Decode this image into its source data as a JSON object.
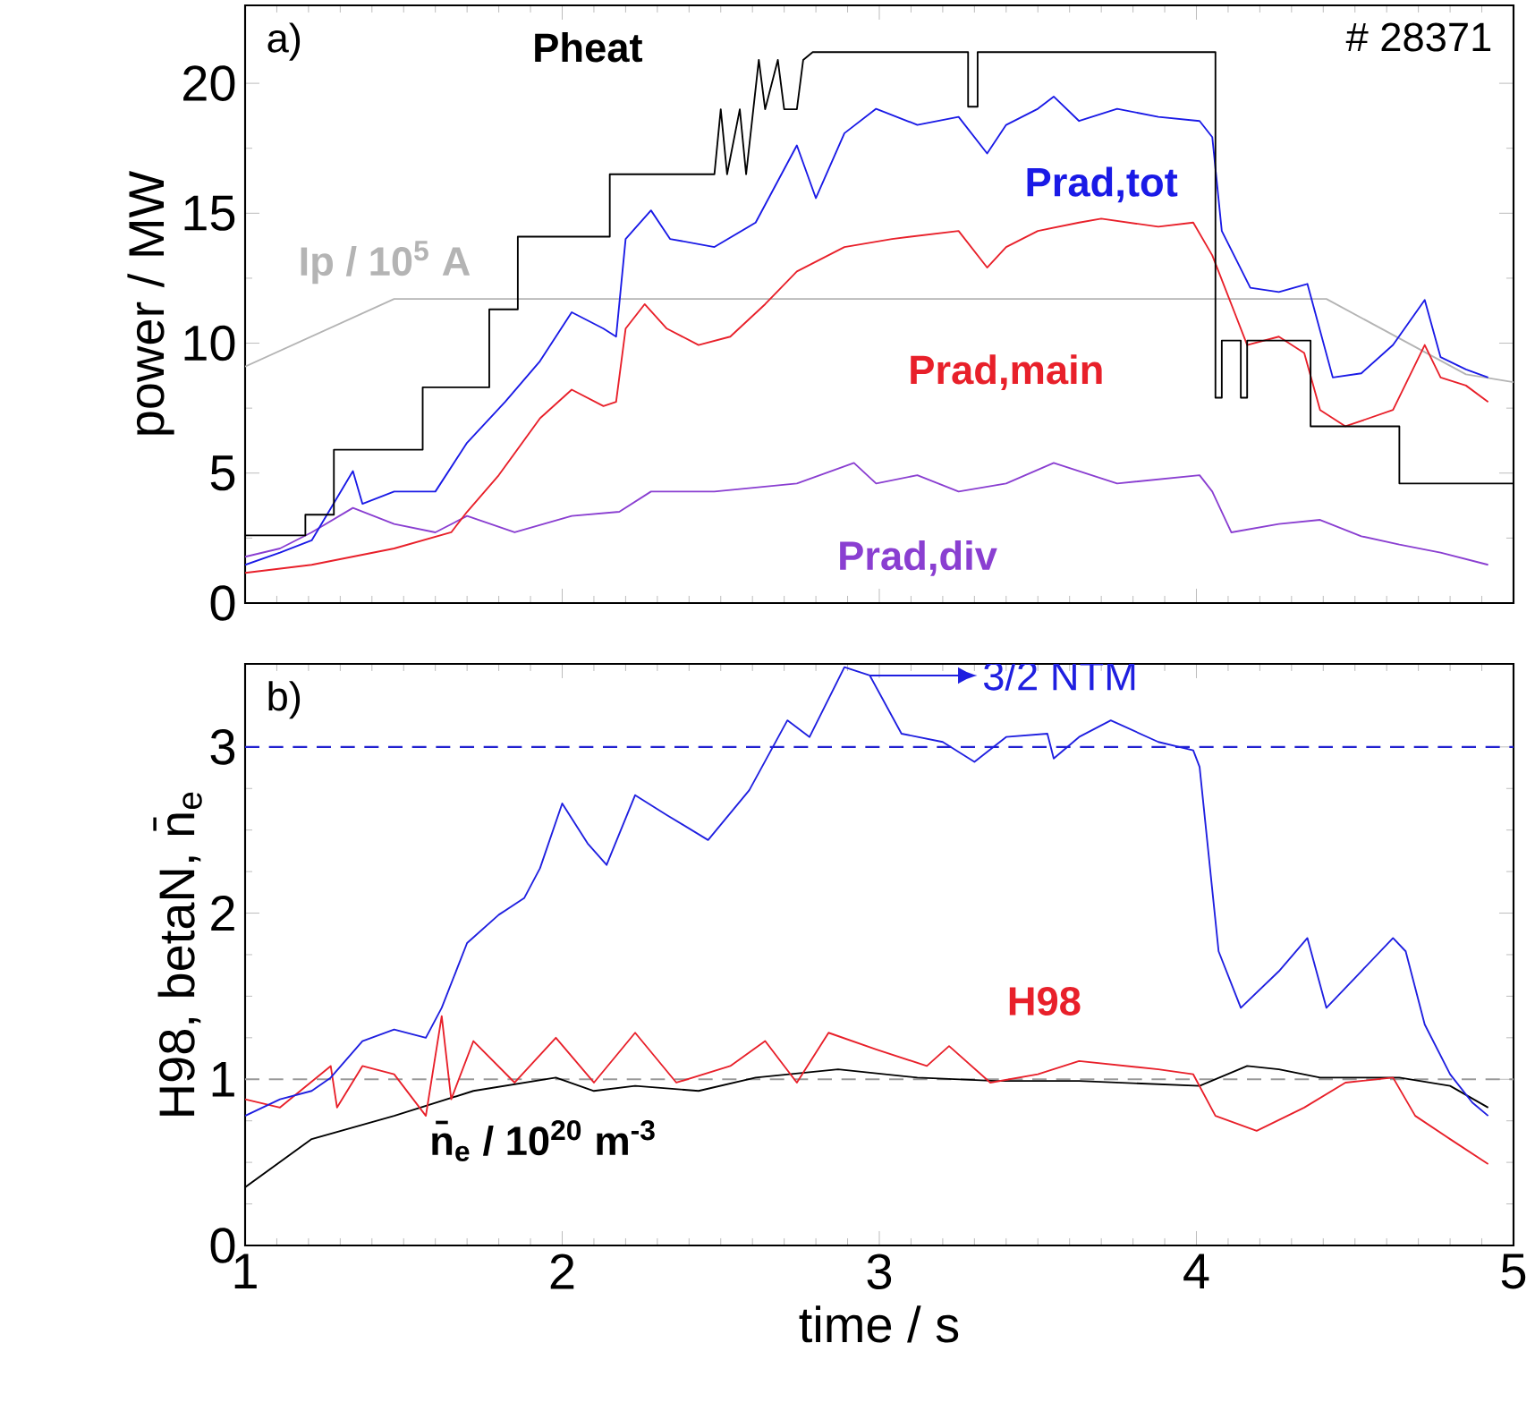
{
  "chart_data": [
    {
      "type": "line",
      "ylabel": "power / MW",
      "xlim": [
        1,
        5
      ],
      "xticks": [
        1,
        2,
        3,
        4,
        5
      ],
      "ylim": [
        0,
        23
      ],
      "yticks": [
        0,
        5,
        10,
        15,
        20
      ],
      "tick_labels": "y",
      "annotations": [
        "a)",
        "# 28371"
      ],
      "series": [
        {
          "name": "Pheat",
          "color": "#000000",
          "x": [
            1.0,
            1.19,
            1.19,
            1.28,
            1.28,
            1.56,
            1.56,
            1.77,
            1.77,
            1.86,
            1.86,
            2.15,
            2.15,
            2.48,
            2.5,
            2.52,
            2.56,
            2.58,
            2.62,
            2.64,
            2.68,
            2.7,
            2.74,
            2.76,
            2.79,
            3.28,
            3.28,
            3.31,
            3.31,
            4.06,
            4.06,
            4.08,
            4.08,
            4.14,
            4.14,
            4.16,
            4.16,
            4.36,
            4.36,
            4.64,
            4.64,
            5.0
          ],
          "values": [
            2.6,
            2.6,
            3.4,
            3.4,
            5.9,
            5.9,
            8.3,
            8.3,
            11.3,
            11.3,
            14.1,
            14.1,
            16.5,
            16.5,
            19,
            16.5,
            19,
            16.5,
            20.9,
            19,
            20.9,
            19,
            19,
            20.9,
            21.2,
            21.2,
            19.1,
            19.1,
            21.2,
            21.2,
            7.9,
            7.9,
            10.1,
            10.1,
            7.9,
            7.9,
            10.1,
            10.1,
            6.8,
            6.8,
            4.6,
            4.6
          ]
        },
        {
          "name": "Prad,tot",
          "color": "#1a1ae6",
          "x": [
            1.0,
            1.11,
            1.21,
            1.34,
            1.37,
            1.47,
            1.6,
            1.7,
            1.82,
            1.93,
            2.03,
            2.13,
            2.17,
            2.2,
            2.28,
            2.34,
            2.48,
            2.61,
            2.74,
            2.8,
            2.89,
            2.99,
            3.12,
            3.25,
            3.34,
            3.4,
            3.5,
            3.55,
            3.63,
            3.75,
            3.88,
            4.01,
            4.05,
            4.08,
            4.17,
            4.26,
            4.35,
            4.43,
            4.52,
            4.62,
            4.72,
            4.77,
            4.85,
            4.92
          ],
          "values": [
            1.47,
            1.94,
            2.41,
            5.08,
            3.82,
            4.29,
            4.29,
            6.17,
            7.74,
            9.31,
            11.19,
            10.56,
            10.25,
            14.01,
            15.11,
            14.01,
            13.7,
            14.64,
            17.61,
            15.58,
            18.08,
            19.02,
            18.4,
            18.71,
            17.3,
            18.4,
            19.02,
            19.49,
            18.55,
            19.02,
            18.71,
            18.55,
            17.93,
            14.32,
            12.13,
            11.97,
            12.28,
            8.68,
            8.84,
            9.93,
            11.66,
            9.46,
            8.99,
            8.68
          ]
        },
        {
          "name": "Prad,main",
          "color": "#e8202a",
          "x": [
            1.0,
            1.21,
            1.47,
            1.65,
            1.7,
            1.8,
            1.93,
            2.03,
            2.13,
            2.17,
            2.2,
            2.26,
            2.33,
            2.43,
            2.53,
            2.64,
            2.74,
            2.89,
            3.04,
            3.25,
            3.34,
            3.4,
            3.5,
            3.63,
            3.7,
            3.88,
            3.99,
            4.05,
            4.12,
            4.16,
            4.26,
            4.34,
            4.39,
            4.47,
            4.62,
            4.72,
            4.77,
            4.85,
            4.92
          ],
          "values": [
            1.16,
            1.47,
            2.1,
            2.72,
            3.51,
            4.92,
            7.11,
            8.21,
            7.58,
            7.74,
            10.56,
            11.5,
            10.56,
            9.93,
            10.25,
            11.5,
            12.76,
            13.7,
            14.01,
            14.32,
            12.91,
            13.7,
            14.32,
            14.64,
            14.79,
            14.48,
            14.64,
            13.38,
            11.19,
            9.93,
            10.25,
            9.62,
            7.43,
            6.8,
            7.43,
            9.93,
            8.68,
            8.37,
            7.74
          ]
        },
        {
          "name": "Prad,div",
          "color": "#8a3fd1",
          "x": [
            1.0,
            1.11,
            1.21,
            1.34,
            1.47,
            1.6,
            1.7,
            1.85,
            2.03,
            2.18,
            2.28,
            2.48,
            2.74,
            2.92,
            2.99,
            3.12,
            3.25,
            3.4,
            3.55,
            3.75,
            4.01,
            4.05,
            4.11,
            4.26,
            4.39,
            4.52,
            4.64,
            4.77,
            4.92
          ],
          "values": [
            1.78,
            2.1,
            2.72,
            3.66,
            3.04,
            2.72,
            3.35,
            2.72,
            3.35,
            3.51,
            4.29,
            4.29,
            4.6,
            5.39,
            4.6,
            4.92,
            4.29,
            4.6,
            5.39,
            4.6,
            4.92,
            4.29,
            2.72,
            3.04,
            3.2,
            2.57,
            2.25,
            1.94,
            1.47
          ]
        },
        {
          "name": "Ip / 10$^{5}$ A",
          "color": "#b4b4b4",
          "x": [
            1.0,
            1.47,
            4.41,
            4.85,
            5.0
          ],
          "values": [
            9.1,
            11.7,
            11.7,
            8.8,
            8.5
          ]
        }
      ]
    },
    {
      "type": "line",
      "xlabel": "time / s",
      "ylabel": "H98, betaN, n̄$_{e}$",
      "xlim": [
        1,
        5
      ],
      "xticks": [
        1,
        2,
        3,
        4,
        5
      ],
      "ylim": [
        0,
        3.5
      ],
      "yticks": [
        0,
        1,
        2,
        3
      ],
      "annotations": [
        "b)",
        {
          "text": "3/2 NTM",
          "x": 2.97,
          "y": 3.43
        }
      ],
      "ref_lines": [
        {
          "axis": "y",
          "value": 3,
          "color": "#2020d0",
          "line_style": "dashed"
        },
        {
          "axis": "y",
          "value": 1,
          "color": "#9a9a9a",
          "line_style": "dashed"
        }
      ],
      "series": [
        {
          "color": "#1f1fe0",
          "x": [
            1.0,
            1.11,
            1.21,
            1.27,
            1.37,
            1.47,
            1.57,
            1.62,
            1.7,
            1.8,
            1.88,
            1.93,
            2.0,
            2.08,
            2.14,
            2.23,
            2.33,
            2.46,
            2.59,
            2.71,
            2.78,
            2.89,
            2.97,
            3.07,
            3.2,
            3.3,
            3.4,
            3.53,
            3.55,
            3.63,
            3.73,
            3.88,
            3.99,
            4.01,
            4.07,
            4.14,
            4.26,
            4.35,
            4.41,
            4.52,
            4.62,
            4.66,
            4.72,
            4.8,
            4.87,
            4.92
          ],
          "values": [
            0.78,
            0.88,
            0.93,
            1.01,
            1.23,
            1.3,
            1.25,
            1.43,
            1.82,
            1.99,
            2.09,
            2.27,
            2.66,
            2.42,
            2.29,
            2.71,
            2.59,
            2.44,
            2.74,
            3.16,
            3.06,
            3.48,
            3.43,
            3.08,
            3.03,
            2.91,
            3.06,
            3.08,
            2.93,
            3.06,
            3.16,
            3.03,
            2.98,
            2.88,
            1.77,
            1.43,
            1.65,
            1.85,
            1.43,
            1.65,
            1.85,
            1.77,
            1.33,
            1.03,
            0.86,
            0.78
          ]
        },
        {
          "name": "H98",
          "color": "#e8202a",
          "x": [
            1.0,
            1.11,
            1.27,
            1.29,
            1.37,
            1.47,
            1.57,
            1.62,
            1.65,
            1.72,
            1.85,
            1.98,
            2.1,
            2.23,
            2.36,
            2.53,
            2.64,
            2.74,
            2.84,
            2.99,
            3.15,
            3.22,
            3.35,
            3.5,
            3.63,
            3.88,
            3.99,
            4.06,
            4.19,
            4.34,
            4.47,
            4.62,
            4.69,
            4.8,
            4.92
          ],
          "values": [
            0.88,
            0.83,
            1.08,
            0.83,
            1.08,
            1.03,
            0.78,
            1.38,
            0.88,
            1.23,
            0.98,
            1.25,
            0.98,
            1.28,
            0.98,
            1.08,
            1.23,
            0.98,
            1.28,
            1.18,
            1.08,
            1.2,
            0.98,
            1.03,
            1.11,
            1.06,
            1.03,
            0.78,
            0.69,
            0.83,
            0.98,
            1.01,
            0.78,
            0.64,
            0.49
          ]
        },
        {
          "name": "n̄$_{e}$ / 10$^{20}$ m$^{-3}$",
          "color": "#000000",
          "x": [
            1.0,
            1.21,
            1.47,
            1.72,
            1.98,
            2.1,
            2.23,
            2.43,
            2.61,
            2.87,
            3.12,
            3.37,
            3.63,
            4.01,
            4.16,
            4.26,
            4.39,
            4.64,
            4.8,
            4.92
          ],
          "values": [
            0.35,
            0.64,
            0.78,
            0.93,
            1.01,
            0.93,
            0.96,
            0.93,
            1.01,
            1.06,
            1.01,
            0.99,
            0.99,
            0.96,
            1.08,
            1.06,
            1.01,
            1.01,
            0.96,
            0.83
          ]
        }
      ]
    }
  ]
}
